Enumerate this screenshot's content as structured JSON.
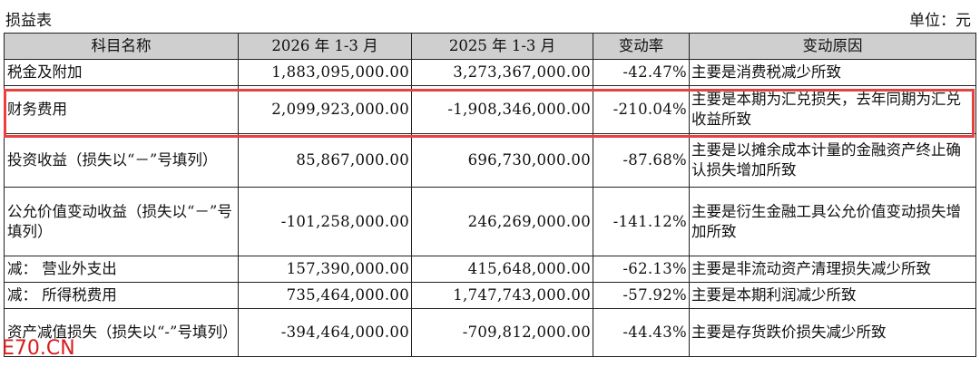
{
  "header": {
    "title": "损益表",
    "unit": "单位：元"
  },
  "table": {
    "columns": [
      "科目名称",
      "2026 年 1-3 月",
      "2025 年 1-3 月",
      "变动率",
      "变动原因"
    ],
    "rows": [
      {
        "item": "税金及附加",
        "current": "1,883,095,000.00",
        "previous": "3,273,367,000.00",
        "rate": "-42.47%",
        "reason": "主要是消费税减少所致"
      },
      {
        "item": "财务费用",
        "current": "2,099,923,000.00",
        "previous": "-1,908,346,000.00",
        "rate": "-210.04%",
        "reason": "主要是本期为汇兑损失，去年同期为汇兑收益所致"
      },
      {
        "item": "投资收益（损失以“－”号填列）",
        "current": "85,867,000.00",
        "previous": "696,730,000.00",
        "rate": "-87.68%",
        "reason": "主要是以摊余成本计量的金融资产终止确认损失增加所致"
      },
      {
        "item": "公允价值变动收益（损失以“－”号填列）",
        "current": "-101,258,000.00",
        "previous": "246,269,000.00",
        "rate": "-141.12%",
        "reason": "主要是衍生金融工具公允价值变动损失增加所致"
      },
      {
        "item": "减：  营业外支出",
        "current": "157,390,000.00",
        "previous": "415,648,000.00",
        "rate": "-62.13%",
        "reason": "主要是非流动资产清理损失减少所致"
      },
      {
        "item": "减：  所得税费用",
        "current": "735,464,000.00",
        "previous": "1,747,743,000.00",
        "rate": "-57.92%",
        "reason": "主要是本期利润减少所致"
      },
      {
        "item": "资产减值损失（损失以“-”号填列）",
        "current": "-394,464,000.00",
        "previous": "-709,812,000.00",
        "rate": "-44.43%",
        "reason": "主要是存货跌价损失减少所致"
      }
    ]
  },
  "watermark": "E70.CN",
  "colors": {
    "highlight_border": "#e8413f",
    "header_bg": "#cfcfcf",
    "watermark": "#d81e1e"
  }
}
